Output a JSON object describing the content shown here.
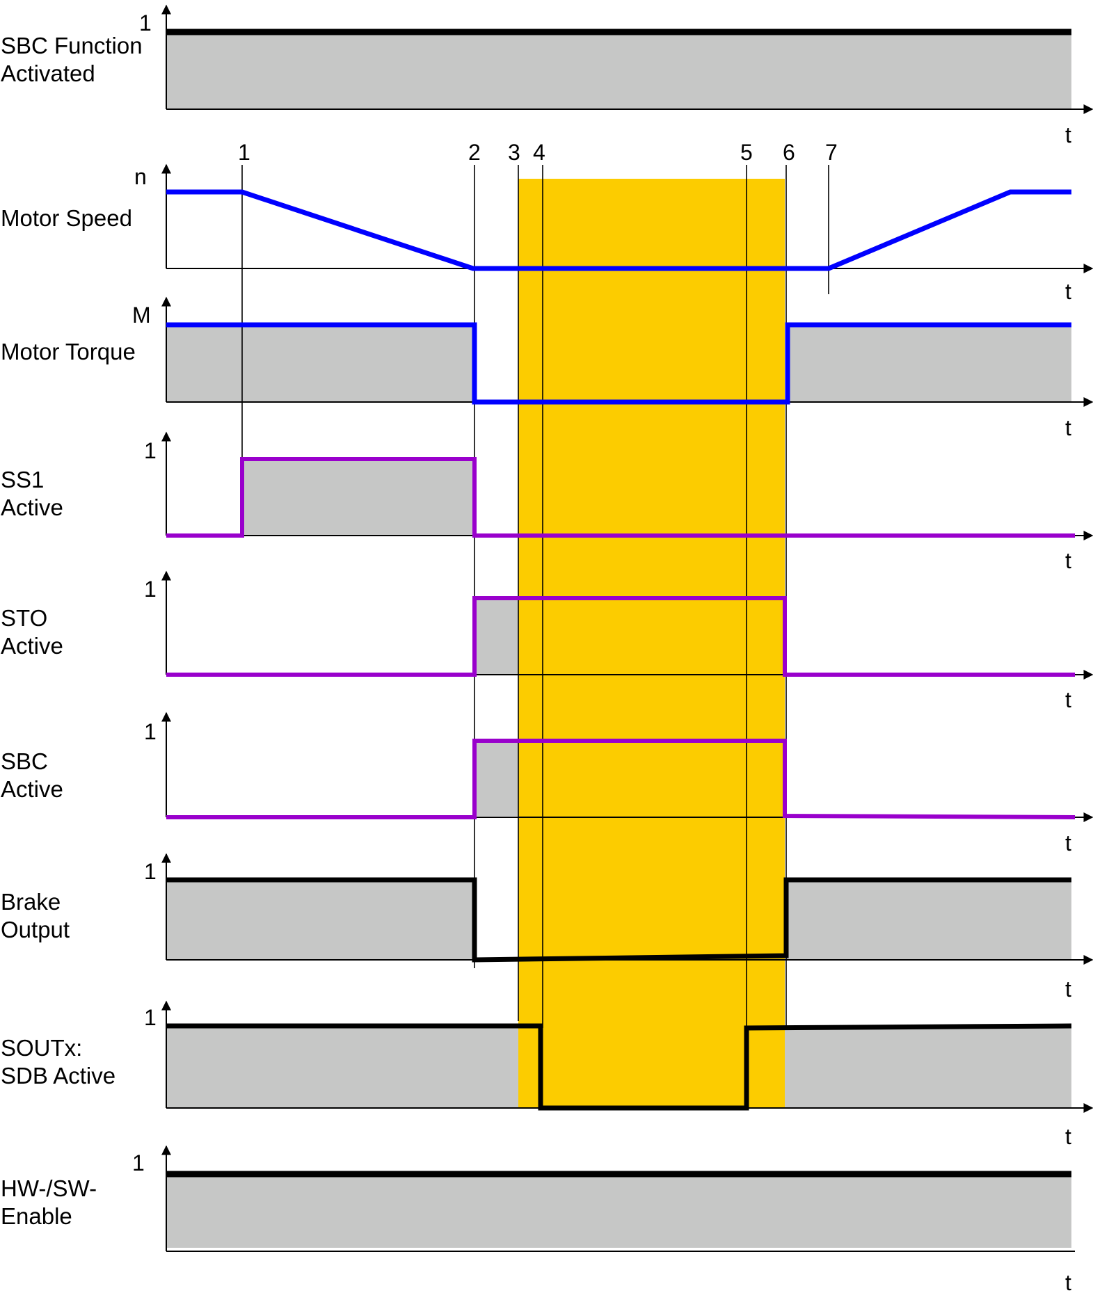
{
  "colors": {
    "fill": "#c6c7c6",
    "highlight": "#fccc00",
    "black": "#000000",
    "blue": "#0000ff",
    "purple": "#9900cc"
  },
  "time_axis_label": "t",
  "markers": [
    "1",
    "2",
    "3",
    "4",
    "5",
    "6",
    "7"
  ],
  "signals": [
    {
      "id": "sbc-function",
      "label_lines": [
        "SBC Function",
        "Activated"
      ],
      "y_label": "1"
    },
    {
      "id": "motor-speed",
      "label_lines": [
        "Motor Speed"
      ],
      "y_label": "n"
    },
    {
      "id": "motor-torque",
      "label_lines": [
        "Motor Torque"
      ],
      "y_label": "M"
    },
    {
      "id": "ss1",
      "label_lines": [
        "SS1",
        "Active"
      ],
      "y_label": "1"
    },
    {
      "id": "sto",
      "label_lines": [
        "STO",
        "Active"
      ],
      "y_label": "1"
    },
    {
      "id": "sbc",
      "label_lines": [
        "SBC",
        "Active"
      ],
      "y_label": "1"
    },
    {
      "id": "brake",
      "label_lines": [
        "Brake",
        "Output"
      ],
      "y_label": "1"
    },
    {
      "id": "soutx",
      "label_lines": [
        "SOUTx:",
        "SDB Active"
      ],
      "y_label": "1"
    },
    {
      "id": "hwsw",
      "label_lines": [
        "HW-/SW-",
        "Enable"
      ],
      "y_label": "1"
    }
  ]
}
